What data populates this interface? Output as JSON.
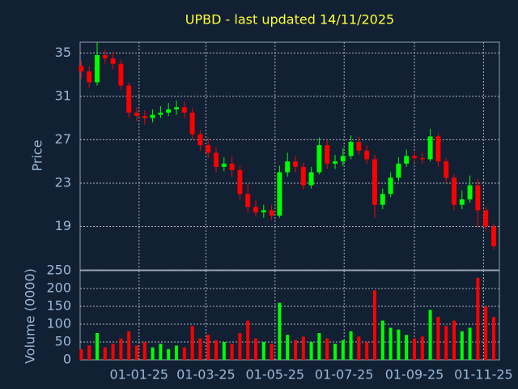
{
  "chart_data": {
    "type": "candlestick",
    "title": "UPBD - last updated 14/11/2025",
    "ylabel": "Price",
    "ylim": [
      15,
      36
    ],
    "yticks": [
      19,
      23,
      27,
      31,
      35
    ],
    "grid": true,
    "up_color": "#00ff00",
    "down_color": "#ff0000",
    "xlim": [
      "2024-11-10",
      "2025-11-15"
    ],
    "xticks": [
      {
        "value": "2025-01-01",
        "label": "01-01-25"
      },
      {
        "value": "2025-03-01",
        "label": "01-03-25"
      },
      {
        "value": "2025-05-01",
        "label": "01-05-25"
      },
      {
        "value": "2025-07-01",
        "label": "01-07-25"
      },
      {
        "value": "2025-09-01",
        "label": "01-09-25"
      },
      {
        "value": "2025-11-01",
        "label": "01-11-25"
      }
    ],
    "x": [
      "2024-11-11",
      "2024-11-18",
      "2024-11-25",
      "2024-12-02",
      "2024-12-09",
      "2024-12-16",
      "2024-12-23",
      "2024-12-30",
      "2025-01-06",
      "2025-01-13",
      "2025-01-20",
      "2025-01-27",
      "2025-02-03",
      "2025-02-10",
      "2025-02-17",
      "2025-02-24",
      "2025-03-03",
      "2025-03-10",
      "2025-03-17",
      "2025-03-24",
      "2025-03-31",
      "2025-04-07",
      "2025-04-14",
      "2025-04-21",
      "2025-04-28",
      "2025-05-05",
      "2025-05-12",
      "2025-05-19",
      "2025-05-26",
      "2025-06-02",
      "2025-06-09",
      "2025-06-16",
      "2025-06-23",
      "2025-06-30",
      "2025-07-07",
      "2025-07-14",
      "2025-07-21",
      "2025-07-28",
      "2025-08-04",
      "2025-08-11",
      "2025-08-18",
      "2025-08-25",
      "2025-09-01",
      "2025-09-08",
      "2025-09-15",
      "2025-09-22",
      "2025-09-29",
      "2025-10-06",
      "2025-10-13",
      "2025-10-20",
      "2025-10-27",
      "2025-11-03",
      "2025-11-10"
    ],
    "open": [
      33.8,
      33.3,
      32.3,
      34.8,
      34.5,
      34.0,
      32.0,
      29.5,
      29.2,
      29.0,
      29.3,
      29.5,
      29.8,
      30.0,
      29.5,
      27.5,
      26.5,
      25.8,
      24.5,
      24.8,
      24.2,
      22.0,
      20.8,
      20.3,
      20.5,
      20.0,
      24.0,
      25.0,
      24.5,
      22.8,
      24.0,
      26.5,
      24.8,
      25.0,
      25.5,
      26.8,
      26.0,
      25.2,
      21.0,
      22.0,
      23.5,
      24.8,
      25.5,
      25.3,
      25.2,
      27.3,
      25.0,
      23.5,
      21.0,
      21.5,
      22.8,
      20.5,
      19.0
    ],
    "high": [
      34.3,
      33.8,
      36.0,
      35.3,
      35.1,
      34.4,
      32.3,
      30.0,
      29.7,
      29.8,
      30.1,
      30.4,
      30.6,
      30.5,
      29.9,
      27.9,
      27.2,
      26.3,
      25.4,
      25.5,
      24.6,
      22.9,
      21.4,
      21.0,
      21.0,
      24.6,
      25.8,
      25.5,
      24.9,
      24.5,
      27.2,
      27.0,
      25.6,
      26.2,
      27.4,
      27.3,
      26.5,
      25.6,
      22.5,
      24.0,
      25.4,
      26.1,
      25.9,
      25.8,
      28.0,
      27.6,
      25.3,
      23.8,
      22.3,
      23.7,
      23.4,
      20.8,
      19.3
    ],
    "low": [
      32.6,
      31.8,
      32.0,
      34.0,
      33.5,
      31.6,
      29.0,
      28.7,
      28.4,
      28.6,
      29.0,
      29.2,
      29.3,
      29.0,
      27.0,
      26.0,
      25.3,
      24.0,
      24.1,
      23.6,
      21.5,
      20.3,
      19.9,
      19.8,
      19.6,
      19.8,
      23.6,
      24.0,
      22.4,
      22.5,
      23.8,
      24.3,
      24.3,
      24.6,
      25.2,
      25.6,
      24.8,
      19.8,
      20.6,
      21.7,
      23.2,
      24.5,
      24.9,
      24.8,
      25.0,
      24.5,
      23.0,
      20.5,
      20.6,
      21.2,
      18.9,
      18.6,
      16.9
    ],
    "close": [
      33.3,
      32.3,
      34.8,
      34.5,
      34.0,
      32.0,
      29.5,
      29.2,
      29.0,
      29.3,
      29.5,
      29.8,
      30.0,
      29.5,
      27.5,
      26.5,
      25.8,
      24.5,
      24.8,
      24.2,
      22.0,
      20.8,
      20.3,
      20.5,
      20.0,
      24.0,
      25.0,
      24.5,
      22.8,
      24.0,
      26.5,
      24.8,
      25.0,
      25.5,
      26.8,
      26.0,
      25.2,
      21.0,
      22.0,
      23.5,
      24.8,
      25.5,
      25.3,
      25.2,
      27.3,
      25.0,
      23.5,
      21.0,
      21.5,
      22.8,
      20.5,
      19.0,
      17.2
    ],
    "volume": {
      "ylabel": "Volume (0000)",
      "ylim": [
        0,
        250
      ],
      "yticks": [
        0,
        50,
        100,
        150,
        200,
        250
      ],
      "values": [
        30,
        40,
        75,
        35,
        45,
        60,
        80,
        40,
        50,
        35,
        45,
        30,
        40,
        35,
        95,
        60,
        70,
        55,
        50,
        45,
        75,
        110,
        60,
        50,
        45,
        160,
        70,
        55,
        65,
        50,
        75,
        60,
        45,
        55,
        80,
        65,
        50,
        195,
        110,
        90,
        85,
        70,
        60,
        65,
        140,
        120,
        95,
        110,
        80,
        90,
        230,
        150,
        120
      ]
    }
  }
}
